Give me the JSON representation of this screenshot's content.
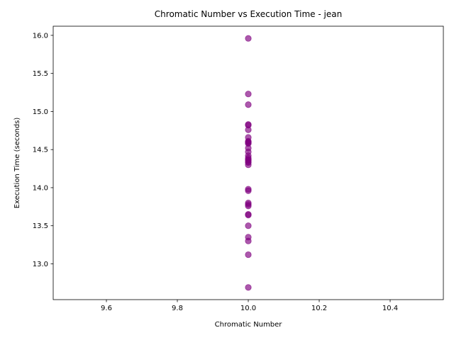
{
  "chart_data": {
    "type": "scatter",
    "title": "Chromatic Number vs Execution Time - jean",
    "xlabel": "Chromatic Number",
    "ylabel": "Execution Time (seconds)",
    "xlim": [
      9.45,
      10.55
    ],
    "ylim": [
      12.53,
      16.12
    ],
    "xticks": [
      9.6,
      9.8,
      10.0,
      10.2,
      10.4
    ],
    "xtick_labels": [
      "9.6",
      "9.8",
      "10.0",
      "10.2",
      "10.4"
    ],
    "yticks": [
      13.0,
      13.5,
      14.0,
      14.5,
      15.0,
      15.5,
      16.0
    ],
    "ytick_labels": [
      "13.0",
      "13.5",
      "14.0",
      "14.5",
      "15.0",
      "15.5",
      "16.0"
    ],
    "grid": false,
    "marker_color": "#800080",
    "marker_alpha": 0.65,
    "x": [
      10,
      10,
      10,
      10,
      10,
      10,
      10,
      10,
      10,
      10,
      10,
      10,
      10,
      10,
      10,
      10,
      10,
      10,
      10,
      10,
      10,
      10,
      10,
      10,
      10,
      10,
      10,
      10,
      10,
      10,
      10,
      10
    ],
    "y": [
      15.96,
      15.23,
      15.09,
      14.83,
      14.82,
      14.76,
      14.66,
      14.61,
      14.59,
      14.58,
      14.52,
      14.47,
      14.42,
      14.39,
      14.36,
      14.34,
      14.33,
      14.3,
      13.98,
      13.96,
      13.8,
      13.78,
      13.76,
      13.65,
      13.64,
      13.5,
      13.35,
      13.3,
      13.12,
      12.69,
      14.6,
      14.37
    ]
  }
}
